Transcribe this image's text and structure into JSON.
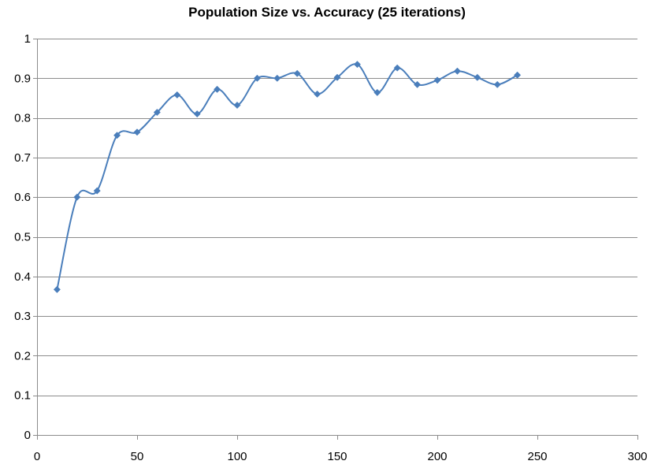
{
  "chart_data": {
    "type": "scatter",
    "title": "Population Size vs. Accuracy (25 iterations)",
    "xlabel": "",
    "ylabel": "",
    "xlim": [
      0,
      300
    ],
    "ylim": [
      0,
      1
    ],
    "x_ticks": [
      0,
      50,
      100,
      150,
      200,
      250,
      300
    ],
    "y_ticks": [
      0,
      0.1,
      0.2,
      0.3,
      0.4,
      0.5,
      0.6,
      0.7,
      0.8,
      0.9,
      1
    ],
    "grid": "horizontal",
    "legend": "none",
    "smooth": true,
    "marker": "diamond",
    "series": [
      {
        "color": "#4a7ebb",
        "points": [
          {
            "x": 10,
            "y": 0.367
          },
          {
            "x": 20,
            "y": 0.6
          },
          {
            "x": 30,
            "y": 0.616
          },
          {
            "x": 40,
            "y": 0.756
          },
          {
            "x": 50,
            "y": 0.764
          },
          {
            "x": 60,
            "y": 0.814
          },
          {
            "x": 70,
            "y": 0.858
          },
          {
            "x": 80,
            "y": 0.81
          },
          {
            "x": 90,
            "y": 0.872
          },
          {
            "x": 100,
            "y": 0.832
          },
          {
            "x": 110,
            "y": 0.9
          },
          {
            "x": 120,
            "y": 0.9
          },
          {
            "x": 130,
            "y": 0.912
          },
          {
            "x": 140,
            "y": 0.86
          },
          {
            "x": 150,
            "y": 0.902
          },
          {
            "x": 160,
            "y": 0.935
          },
          {
            "x": 170,
            "y": 0.864
          },
          {
            "x": 180,
            "y": 0.926
          },
          {
            "x": 190,
            "y": 0.884
          },
          {
            "x": 200,
            "y": 0.895
          },
          {
            "x": 210,
            "y": 0.918
          },
          {
            "x": 220,
            "y": 0.902
          },
          {
            "x": 230,
            "y": 0.884
          },
          {
            "x": 240,
            "y": 0.908
          }
        ]
      }
    ]
  }
}
